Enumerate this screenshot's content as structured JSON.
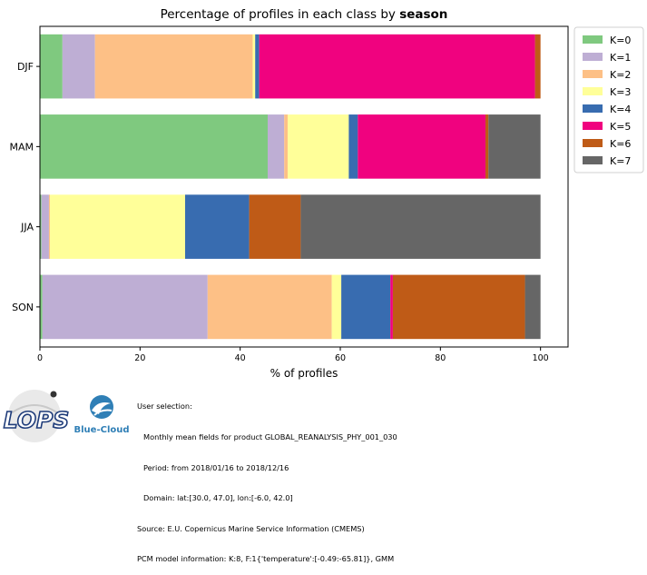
{
  "chart_data": {
    "type": "bar",
    "orientation": "horizontal",
    "stacked": true,
    "title_prefix": "Percentage of profiles in each class by ",
    "title_bold": "season",
    "xlabel": "% of profiles",
    "ylabel": "",
    "xlim": [
      0,
      105.5
    ],
    "xticks": [
      0,
      20,
      40,
      60,
      80,
      100
    ],
    "categories": [
      "DJF",
      "MAM",
      "JJA",
      "SON"
    ],
    "legend_position": "outside-top-right",
    "grid": false,
    "series": [
      {
        "name": "K=0",
        "color": "#7fc97f",
        "values": [
          4.5,
          45.5,
          0.3,
          0.5
        ]
      },
      {
        "name": "K=1",
        "color": "#beaed4",
        "values": [
          6.5,
          3.3,
          1.5,
          33.0
        ]
      },
      {
        "name": "K=2",
        "color": "#fdc086",
        "values": [
          31.5,
          0.7,
          0.2,
          24.8
        ]
      },
      {
        "name": "K=3",
        "color": "#ffff99",
        "values": [
          0.5,
          12.2,
          27.0,
          1.9
        ]
      },
      {
        "name": "K=4",
        "color": "#386cb0",
        "values": [
          0.8,
          1.8,
          12.8,
          9.8
        ]
      },
      {
        "name": "K=5",
        "color": "#f0027f",
        "values": [
          55.1,
          25.5,
          0.0,
          0.5
        ]
      },
      {
        "name": "K=6",
        "color": "#bf5b17",
        "values": [
          1.1,
          0.6,
          10.3,
          26.4
        ]
      },
      {
        "name": "K=7",
        "color": "#666666",
        "values": [
          0.0,
          10.4,
          47.9,
          3.1
        ]
      }
    ]
  },
  "footer": {
    "line1": "User selection:",
    "line2": "Monthly mean fields for product GLOBAL_REANALYSIS_PHY_001_030",
    "line3": "Period: from 2018/01/16 to 2018/12/16",
    "line4": "Domain: lat:[30.0, 47.0], lon:[-6.0, 42.0]",
    "line5": "Source: E.U. Copernicus Marine Service Information (CMEMS)",
    "line6": "PCM model information: K:8, F:1{'temperature':[-0.49:-65.81]}, GMM"
  },
  "logos": {
    "lops_text": "LOPS",
    "bluecloud_text": "Blue-Cloud"
  }
}
